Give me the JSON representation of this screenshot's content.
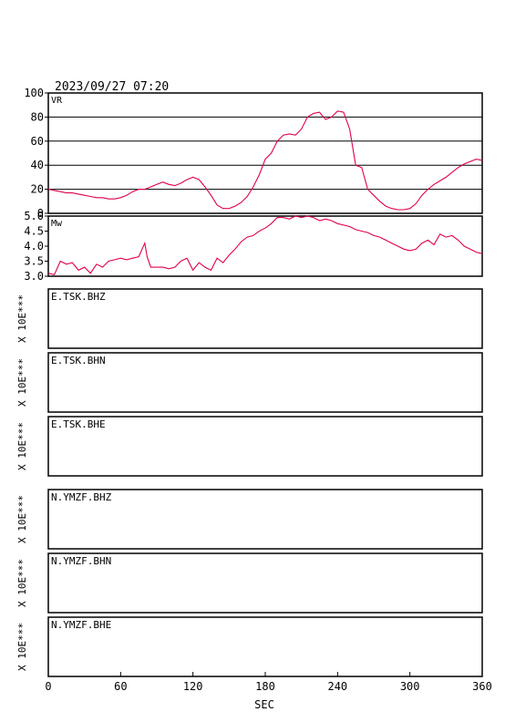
{
  "timestamp": "2023/09/27 07:20",
  "colors": {
    "trace": "#e0004a",
    "axes": "#000000",
    "grid": "#000000"
  },
  "chart_data": [
    {
      "type": "line",
      "label": "VR",
      "ylim": [
        0,
        100
      ],
      "yticks": [
        "100",
        "80",
        "60",
        "40",
        "20",
        "0"
      ],
      "ytick_values": [
        100,
        80,
        60,
        40,
        20,
        0
      ],
      "grid": true,
      "x": [
        0,
        5,
        10,
        15,
        20,
        25,
        30,
        35,
        40,
        45,
        50,
        55,
        60,
        65,
        70,
        75,
        80,
        85,
        90,
        95,
        100,
        105,
        110,
        115,
        120,
        125,
        130,
        135,
        140,
        145,
        150,
        155,
        160,
        165,
        170,
        175,
        180,
        185,
        190,
        195,
        200,
        205,
        210,
        215,
        220,
        225,
        230,
        235,
        240,
        245,
        250,
        255,
        260,
        265,
        270,
        275,
        280,
        285,
        290,
        295,
        300,
        305,
        310,
        315,
        320,
        325,
        330,
        335,
        340,
        345,
        350,
        355,
        360
      ],
      "y": [
        20,
        19,
        18,
        17,
        17,
        16,
        15,
        14,
        13,
        13,
        12,
        12,
        13,
        15,
        18,
        20,
        20,
        22,
        24,
        26,
        24,
        23,
        25,
        28,
        30,
        28,
        22,
        15,
        7,
        4,
        4,
        6,
        9,
        14,
        22,
        32,
        45,
        50,
        60,
        65,
        66,
        65,
        70,
        80,
        83,
        84,
        78,
        80,
        85,
        84,
        70,
        40,
        38,
        20,
        15,
        10,
        6,
        4,
        3,
        3,
        4,
        8,
        15,
        20,
        24,
        27,
        30,
        34,
        38,
        41,
        43,
        45,
        44
      ]
    },
    {
      "type": "line",
      "label": "Mw",
      "ylim": [
        3.0,
        5.0
      ],
      "yticks": [
        "5.0",
        "4.5",
        "4.0",
        "3.5",
        "3.0"
      ],
      "ytick_values": [
        5.0,
        4.5,
        4.0,
        3.5,
        3.0
      ],
      "grid": false,
      "x": [
        0,
        5,
        10,
        15,
        20,
        25,
        30,
        35,
        40,
        45,
        50,
        55,
        60,
        65,
        70,
        75,
        80,
        82,
        85,
        90,
        95,
        100,
        105,
        110,
        115,
        120,
        125,
        130,
        135,
        140,
        145,
        150,
        155,
        160,
        165,
        170,
        175,
        180,
        185,
        190,
        195,
        200,
        205,
        210,
        215,
        220,
        225,
        230,
        235,
        240,
        245,
        250,
        255,
        260,
        265,
        270,
        275,
        280,
        285,
        290,
        295,
        300,
        305,
        310,
        315,
        320,
        325,
        330,
        335,
        340,
        345,
        350,
        355,
        360
      ],
      "y": [
        3.1,
        3.05,
        3.5,
        3.4,
        3.45,
        3.2,
        3.3,
        3.1,
        3.4,
        3.3,
        3.5,
        3.55,
        3.6,
        3.55,
        3.6,
        3.65,
        4.1,
        3.65,
        3.3,
        3.3,
        3.3,
        3.25,
        3.3,
        3.5,
        3.6,
        3.2,
        3.45,
        3.3,
        3.2,
        3.6,
        3.45,
        3.7,
        3.9,
        4.15,
        4.3,
        4.35,
        4.5,
        4.6,
        4.75,
        4.95,
        4.95,
        4.9,
        5.0,
        4.95,
        5.0,
        4.95,
        4.85,
        4.9,
        4.85,
        4.75,
        4.7,
        4.65,
        4.55,
        4.5,
        4.45,
        4.35,
        4.3,
        4.2,
        4.1,
        4.0,
        3.9,
        3.85,
        3.9,
        4.1,
        4.2,
        4.05,
        4.4,
        4.3,
        4.35,
        4.2,
        4.0,
        3.9,
        3.8,
        3.75
      ]
    }
  ],
  "trace_panels": [
    {
      "station": "E.TSK.BHZ",
      "scale_label": "X 10E***"
    },
    {
      "station": "E.TSK.BHN",
      "scale_label": "X 10E***"
    },
    {
      "station": "E.TSK.BHE",
      "scale_label": "X 10E***"
    },
    {
      "station": "N.YMZF.BHZ",
      "scale_label": "X 10E***"
    },
    {
      "station": "N.YMZF.BHN",
      "scale_label": "X 10E***"
    },
    {
      "station": "N.YMZF.BHE",
      "scale_label": "X 10E***"
    }
  ],
  "x_axis": {
    "label": "SEC",
    "xlim": [
      0,
      360
    ],
    "ticks": [
      "0",
      "60",
      "120",
      "180",
      "240",
      "300",
      "360"
    ],
    "tick_values": [
      0,
      60,
      120,
      180,
      240,
      300,
      360
    ]
  }
}
